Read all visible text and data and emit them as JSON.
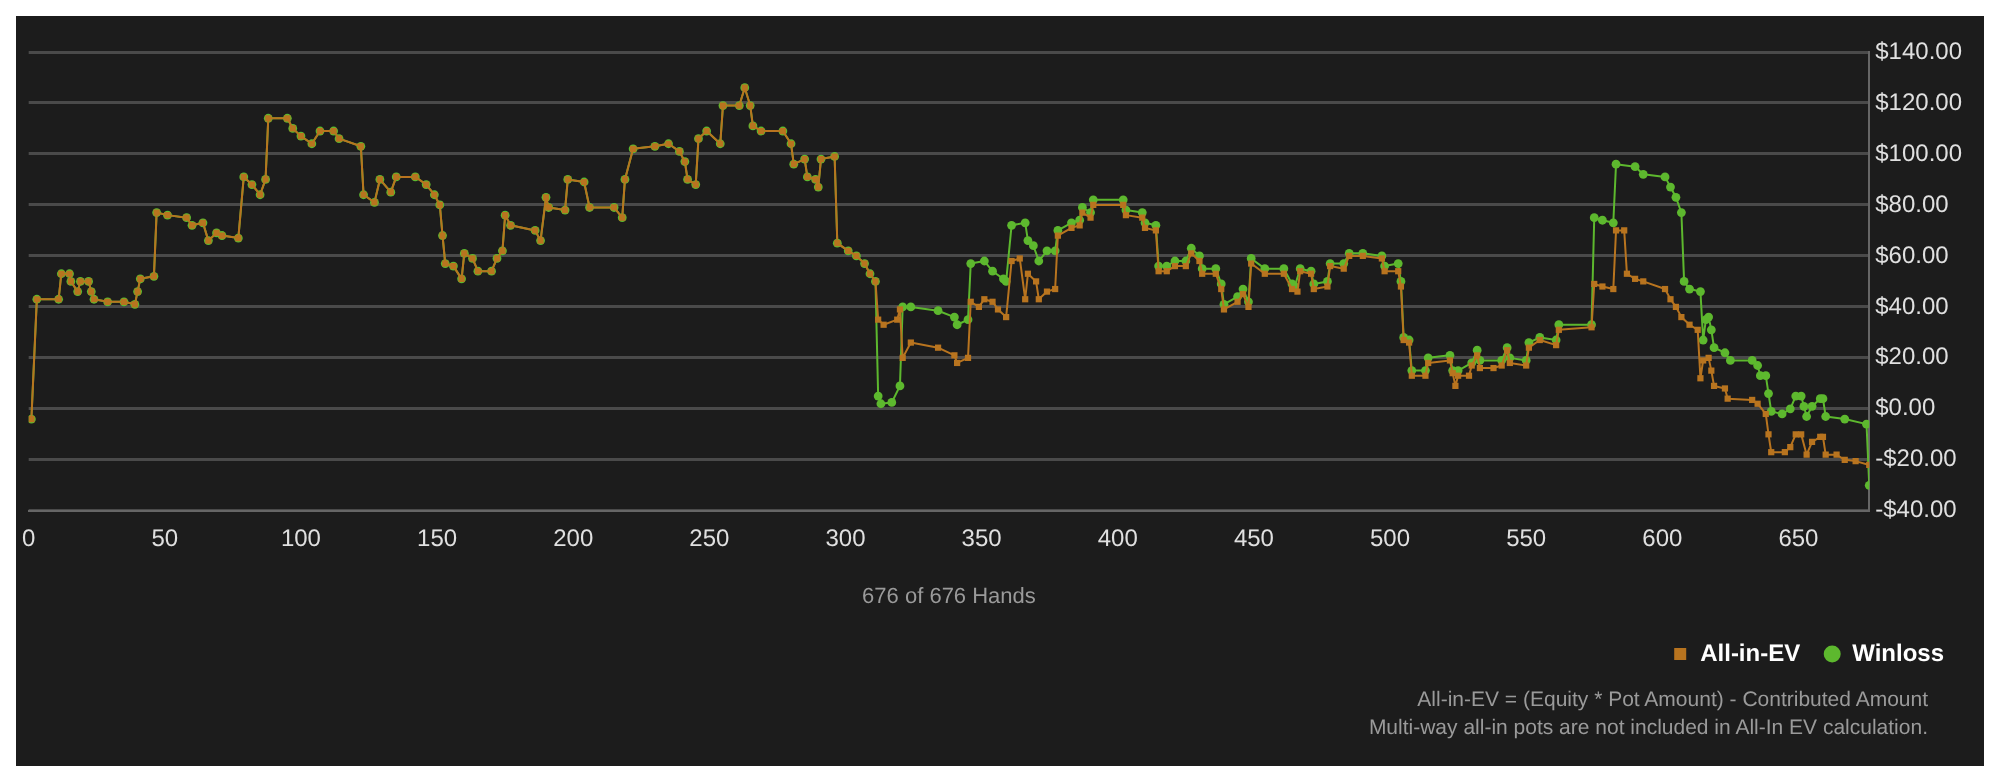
{
  "chart_data": {
    "type": "line",
    "xlabel": "676 of 676 Hands",
    "xlim": [
      0,
      676
    ],
    "xticks": [
      0,
      50,
      100,
      150,
      200,
      250,
      300,
      350,
      400,
      450,
      500,
      550,
      600,
      650
    ],
    "ylim": [
      -40,
      140
    ],
    "yticks": [
      {
        "value": 140,
        "label": "$140.00"
      },
      {
        "value": 120,
        "label": "$120.00"
      },
      {
        "value": 100,
        "label": "$100.00"
      },
      {
        "value": 80,
        "label": "$80.00"
      },
      {
        "value": 60,
        "label": "$60.00"
      },
      {
        "value": 40,
        "label": "$40.00"
      },
      {
        "value": 20,
        "label": "$20.00"
      },
      {
        "value": 0,
        "label": "$0.00"
      },
      {
        "value": -20,
        "label": "-$20.00"
      },
      {
        "value": -40,
        "label": "-$40.00"
      }
    ],
    "grid": "y",
    "legend": "bottom right",
    "line_style": "solid",
    "annotations": [
      "All-in-EV = (Equity * Pot Amount) - Contributed Amount",
      "Multi-way all-in pots are not included in All-In EV calculation."
    ],
    "series": [
      {
        "name": "All-in-EV",
        "color": "#b8741f",
        "marker": "square",
        "x": [
          1,
          3,
          11,
          12,
          15,
          15.5,
          18,
          19,
          22,
          23,
          24,
          29,
          35,
          39,
          40,
          41,
          46,
          47,
          51,
          58,
          60,
          64,
          66,
          69,
          71,
          77,
          79,
          82,
          85,
          87,
          88,
          95,
          97,
          100,
          104,
          107,
          112,
          114,
          122,
          123,
          127,
          129,
          133,
          135,
          142,
          146,
          149,
          151,
          152,
          153,
          156,
          159,
          160,
          163,
          165,
          170,
          172,
          174,
          175,
          177,
          186,
          188,
          190,
          191,
          197,
          198,
          204,
          206,
          215,
          218,
          219,
          222,
          230,
          235,
          239,
          241,
          242,
          245,
          246,
          249,
          254,
          255,
          261,
          263,
          265,
          266,
          269,
          277,
          280,
          281,
          285,
          286,
          289,
          290,
          291,
          296,
          297,
          301,
          304,
          307,
          309,
          311,
          312,
          314,
          319,
          320,
          321,
          324,
          334,
          340,
          341,
          345,
          346,
          349,
          351,
          354,
          356,
          359,
          361,
          364,
          366,
          367,
          370,
          371,
          374,
          377,
          378,
          383,
          386,
          387,
          390,
          391,
          402,
          403,
          409,
          410,
          414,
          415,
          418,
          421,
          425,
          427,
          430,
          431,
          436,
          438,
          439,
          444,
          446,
          448,
          449,
          454,
          461,
          464,
          466,
          467,
          471,
          472,
          477,
          478,
          483,
          485,
          490,
          497,
          498,
          503,
          504,
          505,
          507,
          508,
          513,
          514,
          522,
          523,
          524,
          525,
          529,
          530,
          532,
          533,
          538,
          541,
          543,
          544,
          550,
          551,
          555,
          561,
          562,
          574,
          575,
          578,
          582,
          583,
          586,
          587,
          590,
          593,
          601,
          603,
          605,
          607,
          610,
          613,
          614,
          615,
          617,
          618,
          619,
          623,
          624,
          633,
          635,
          638,
          639,
          640,
          645,
          647,
          649,
          651,
          653,
          655,
          658,
          659,
          660,
          664,
          667,
          671,
          676
        ],
        "values": [
          -4,
          43,
          43,
          53,
          53,
          50,
          46,
          50,
          50,
          46,
          43,
          42,
          42,
          41,
          46,
          51,
          52,
          77,
          76,
          75,
          72,
          73,
          66,
          69,
          68,
          67,
          91,
          88,
          84,
          90,
          114,
          114,
          110,
          107,
          104,
          109,
          109,
          106,
          103,
          84,
          81,
          90,
          85,
          91,
          91,
          88,
          84,
          80,
          68,
          57,
          56,
          51,
          61,
          59,
          54,
          54,
          59,
          62,
          76,
          72,
          70,
          66,
          83,
          79,
          78,
          90,
          89,
          79,
          79,
          75,
          90,
          102,
          103,
          104,
          101,
          97,
          90,
          88,
          106,
          109,
          104,
          119,
          119,
          126,
          119,
          111,
          109,
          109,
          104,
          96,
          98,
          91,
          90,
          87,
          98,
          99,
          65,
          62,
          60,
          57,
          53,
          50,
          35,
          33,
          35,
          39,
          20,
          26,
          24,
          21,
          18,
          20,
          42,
          40,
          43,
          42,
          39,
          36,
          58,
          59,
          43,
          53,
          50,
          43,
          46,
          47,
          68,
          71,
          72,
          77,
          75,
          80,
          80,
          76,
          75,
          71,
          70,
          54,
          54,
          56,
          56,
          61,
          58,
          53,
          53,
          47,
          39,
          42,
          45,
          40,
          57,
          53,
          53,
          47,
          46,
          54,
          53,
          47,
          48,
          56,
          55,
          60,
          60,
          59,
          54,
          54,
          48,
          27,
          26,
          13,
          13,
          18,
          19,
          14,
          9,
          13,
          13,
          17,
          21,
          16,
          16,
          17,
          23,
          18,
          17,
          24,
          27,
          25,
          31,
          32,
          49,
          48,
          47,
          70,
          70,
          53,
          51,
          50,
          47,
          43,
          40,
          36,
          33,
          31,
          12,
          19,
          20,
          15,
          9,
          8,
          4,
          3.5,
          2,
          -2,
          -10,
          -17,
          -17,
          -15,
          -10,
          -10,
          -18,
          -13,
          -11,
          -11,
          -18,
          -18,
          -20,
          -20.5,
          -22
        ]
      },
      {
        "name": "Winloss",
        "color": "#5db82e",
        "marker": "circle",
        "x": [
          1,
          3,
          11,
          12,
          15,
          15.5,
          18,
          19,
          22,
          23,
          24,
          29,
          35,
          39,
          40,
          41,
          46,
          47,
          51,
          58,
          60,
          64,
          66,
          69,
          71,
          77,
          79,
          82,
          85,
          87,
          88,
          95,
          97,
          100,
          104,
          107,
          112,
          114,
          122,
          123,
          127,
          129,
          133,
          135,
          142,
          146,
          149,
          151,
          152,
          153,
          156,
          159,
          160,
          163,
          165,
          170,
          172,
          174,
          175,
          177,
          186,
          188,
          190,
          191,
          197,
          198,
          204,
          206,
          215,
          218,
          219,
          222,
          230,
          235,
          239,
          241,
          242,
          245,
          246,
          249,
          254,
          255,
          261,
          263,
          265,
          266,
          269,
          277,
          280,
          281,
          285,
          286,
          289,
          290,
          291,
          296,
          297,
          301,
          304,
          307,
          309,
          311,
          312,
          313,
          317,
          320,
          321,
          324,
          334,
          340,
          341,
          345,
          346,
          351,
          354,
          358,
          359,
          361,
          366,
          367,
          369,
          371,
          374,
          377,
          378,
          383,
          386,
          387,
          390,
          391,
          402,
          403,
          409,
          410,
          414,
          415,
          418,
          421,
          425,
          427,
          430,
          431,
          436,
          438,
          439,
          444,
          446,
          448,
          449,
          454,
          461,
          464,
          465,
          467,
          471,
          472,
          477,
          478,
          483,
          485,
          490,
          497,
          498,
          503,
          504,
          505,
          507,
          508,
          513,
          514,
          522,
          523,
          525,
          530,
          532,
          533,
          541,
          543,
          544,
          550,
          551,
          555,
          561,
          562,
          574,
          575,
          578,
          582,
          583,
          590,
          593,
          601,
          603,
          605,
          607,
          608,
          610,
          614,
          615,
          616,
          617,
          618,
          619,
          623,
          625,
          633,
          635,
          636,
          638,
          639,
          640,
          644,
          647,
          649,
          651,
          652,
          653,
          655,
          658,
          659,
          660,
          667,
          675,
          676
        ],
        "values": [
          -4,
          43,
          43,
          53,
          53,
          50,
          46,
          50,
          50,
          46,
          43,
          42,
          42,
          41,
          46,
          51,
          52,
          77,
          76,
          75,
          72,
          73,
          66,
          69,
          68,
          67,
          91,
          88,
          84,
          90,
          114,
          114,
          110,
          107,
          104,
          109,
          109,
          106,
          103,
          84,
          81,
          90,
          85,
          91,
          91,
          88,
          84,
          80,
          68,
          57,
          56,
          51,
          61,
          59,
          54,
          54,
          59,
          62,
          76,
          72,
          70,
          66,
          83,
          79,
          78,
          90,
          89,
          79,
          79,
          75,
          90,
          102,
          103,
          104,
          101,
          97,
          90,
          88,
          106,
          109,
          104,
          119,
          119,
          126,
          119,
          111,
          109,
          109,
          104,
          96,
          98,
          91,
          90,
          87,
          98,
          99,
          65,
          62,
          60,
          57,
          53,
          50,
          5,
          2,
          2.5,
          9,
          40,
          40,
          38.5,
          36,
          33,
          35,
          57,
          58,
          54,
          51,
          50,
          72,
          73,
          66,
          64,
          58,
          62,
          62,
          70,
          73,
          74,
          79,
          77,
          82,
          82,
          78,
          77,
          73,
          72,
          56,
          56,
          58,
          58,
          63,
          60,
          55,
          55,
          49,
          41,
          44,
          47,
          42,
          59,
          55,
          55,
          49,
          48,
          55,
          54,
          49,
          50,
          57,
          57,
          61,
          61,
          60,
          56,
          57,
          50,
          28,
          27,
          15,
          15,
          20,
          21,
          15,
          15,
          18,
          23,
          19,
          19,
          24,
          20,
          19,
          26,
          28,
          27,
          33,
          33,
          75,
          74,
          73,
          96,
          95,
          92,
          91,
          87,
          83,
          77,
          50,
          47,
          46,
          27,
          35,
          36,
          31,
          24,
          22,
          19,
          19,
          17,
          13,
          13,
          6,
          -1,
          -2,
          0,
          5,
          5,
          1,
          -3,
          1,
          4,
          4,
          -3,
          -4,
          -6,
          -30
        ]
      }
    ]
  }
}
